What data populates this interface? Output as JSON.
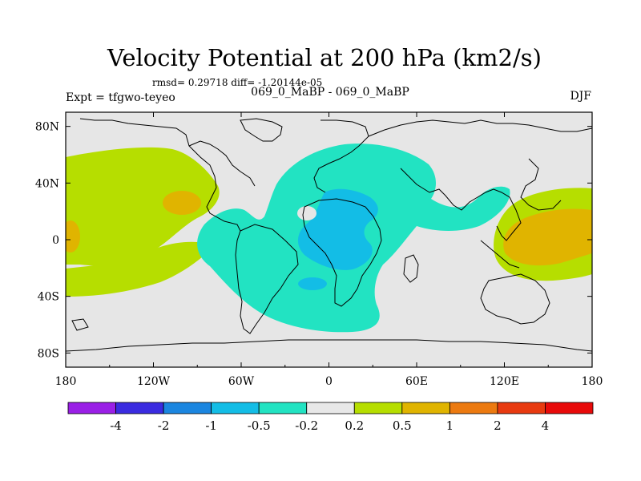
{
  "chart_data": {
    "type": "heatmap",
    "title": "Velocity Potential at 200 hPa (km2/s)",
    "stats_line": "rmsd= 0.29718 diff= -1.20144e-05",
    "left_label": "Expt = tfgwo-teyeo",
    "center_label": "069_0_MaBP - 069_0_MaBP",
    "right_label": "DJF",
    "x_ticks": [
      "180",
      "120W",
      "60W",
      "0",
      "60E",
      "120E",
      "180"
    ],
    "x_tick_values": [
      -180,
      -120,
      -60,
      0,
      60,
      120,
      180
    ],
    "y_ticks": [
      "80N",
      "40N",
      "0",
      "40S",
      "80S"
    ],
    "y_tick_values": [
      80,
      40,
      0,
      -40,
      -80
    ],
    "xlim": [
      -180,
      180
    ],
    "ylim": [
      -90,
      90
    ],
    "colorbar": {
      "labels": [
        "-4",
        "-2",
        "-1",
        "-0.5",
        "-0.2",
        "0.2",
        "0.5",
        "1",
        "2",
        "4"
      ],
      "colors": [
        "#9a1fe6",
        "#3a2be0",
        "#1b86e0",
        "#13bde6",
        "#22e3c2",
        "#e8e8e8",
        "#b6de00",
        "#e0b400",
        "#ec7a10",
        "#e83a10",
        "#e80a0a"
      ]
    },
    "levels": [
      -4,
      -2,
      -1,
      -0.5,
      -0.2,
      0.2,
      0.5,
      1,
      2,
      4
    ],
    "regions": [
      {
        "name": "negative-anomaly-atlantic-africa",
        "level": "-0.5 to -0.2",
        "lon": [
          -95,
          75
        ],
        "lat": [
          -70,
          65
        ]
      },
      {
        "name": "negative-anomaly-core",
        "level": "-1 to -0.5",
        "lon": [
          -20,
          30
        ],
        "lat": [
          -40,
          25
        ]
      },
      {
        "name": "positive-anomaly-east-pacific",
        "level": "0.2 to 0.5",
        "lon": [
          -180,
          -80
        ],
        "lat": [
          -35,
          55
        ]
      },
      {
        "name": "positive-anomaly-west-pacific",
        "level": "0.2 to 1",
        "lon": [
          115,
          180
        ],
        "lat": [
          -25,
          40
        ]
      }
    ]
  }
}
